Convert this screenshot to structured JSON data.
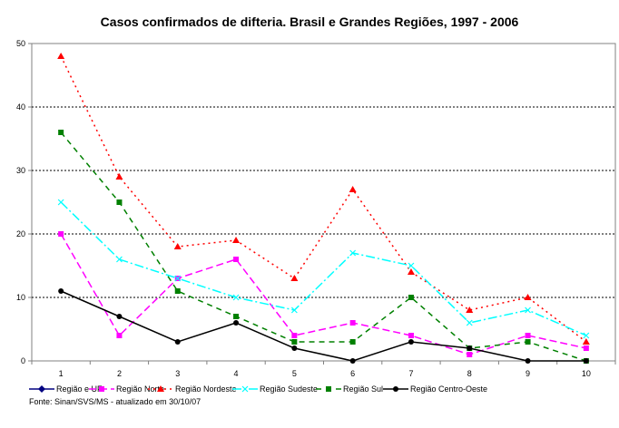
{
  "chart_data": {
    "type": "line",
    "title": "Casos confirmados de difteria. Brasil e Grandes Regiões, 1997 - 2006",
    "xlabel": "",
    "ylabel": "",
    "x": [
      1,
      2,
      3,
      4,
      5,
      6,
      7,
      8,
      9,
      10
    ],
    "ylim": [
      0,
      50
    ],
    "yticks": [
      0,
      10,
      20,
      30,
      40,
      50
    ],
    "grid": "horizontal dotted",
    "legend": "bottom",
    "series": [
      {
        "name": "Região e UF",
        "color": "#000080",
        "marker": "diamond",
        "dash": "solid",
        "values": []
      },
      {
        "name": "Região Norte",
        "color": "#FF00FF",
        "marker": "square",
        "dash": "dashed",
        "values": [
          20,
          4,
          13,
          16,
          4,
          6,
          4,
          1,
          4,
          2
        ]
      },
      {
        "name": "Região Nordeste",
        "color": "#FF0000",
        "marker": "triangle",
        "dash": "dotted",
        "values": [
          48,
          29,
          18,
          19,
          13,
          27,
          14,
          8,
          10,
          3
        ]
      },
      {
        "name": "Região Sudeste",
        "color": "#00FFFF",
        "marker": "x",
        "dash": "dashdot",
        "values": [
          25,
          16,
          13,
          10,
          8,
          17,
          15,
          6,
          8,
          4
        ]
      },
      {
        "name": "Região Sul",
        "color": "#008000",
        "marker": "square",
        "dash": "longdash",
        "values": [
          36,
          25,
          11,
          7,
          3,
          3,
          10,
          2,
          3,
          0
        ]
      },
      {
        "name": "Região Centro-Oeste",
        "color": "#000000",
        "marker": "circle",
        "dash": "solid",
        "values": [
          11,
          7,
          3,
          6,
          2,
          0,
          3,
          2,
          0,
          0
        ]
      }
    ]
  },
  "source": "Fonte: Sinan/SVS/MS - atualizado em 30/10/07"
}
